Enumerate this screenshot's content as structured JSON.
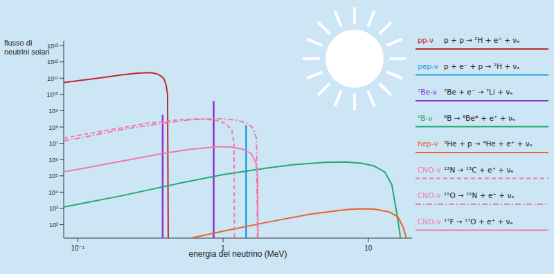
{
  "chart_data": {
    "type": "line",
    "xlabel": "energia del neutrino  (MeV)",
    "ylabel": [
      "flusso di",
      "neutrini solari"
    ],
    "log": true,
    "grid": false,
    "legend": "right",
    "xlim": [
      0.08,
      20
    ],
    "ylim": [
      15,
      20000000000000.0
    ],
    "xticks": [
      {
        "value": 0.1,
        "label": "10⁻¹"
      },
      1,
      10
    ],
    "yticks": [
      {
        "value": 100,
        "label": "10²"
      },
      {
        "value": 1000,
        "label": "10³"
      },
      {
        "value": 10000,
        "label": "10⁴"
      },
      {
        "value": 100000,
        "label": "10⁵"
      },
      {
        "value": 1000000,
        "label": "10⁶"
      },
      {
        "value": 10000000,
        "label": "10⁷"
      },
      {
        "value": 100000000,
        "label": "10⁸"
      },
      {
        "value": 1000000000,
        "label": "10⁹"
      },
      {
        "value": 10000000000,
        "label": "10¹⁰"
      },
      {
        "value": 100000000000,
        "label": "10¹¹"
      },
      {
        "value": 1000000000000,
        "label": "10¹²"
      },
      {
        "value": 10000000000000,
        "label": "10¹³"
      }
    ],
    "series": [
      {
        "name": "pp-ν",
        "reaction": "p + p → ²H + e⁺ + νₑ",
        "color": "#c1272d",
        "type": "line",
        "line_style": "solid",
        "x": [
          0.08,
          0.1,
          0.15,
          0.2,
          0.25,
          0.3,
          0.33,
          0.36,
          0.39,
          0.405,
          0.415,
          0.42
        ],
        "values": [
          55000000000,
          70000000000,
          110000000000,
          160000000000,
          200000000000,
          220000000000,
          210000000000,
          170000000000,
          100000000000,
          40000000000,
          10000000000,
          1
        ]
      },
      {
        "name": "pep-ν",
        "reaction": "p + e⁻ + p → ²H + νₑ",
        "color": "#1c9fdb",
        "type": "stem",
        "line_style": "solid",
        "x": [
          1.442
        ],
        "values": [
          130000000
        ]
      },
      {
        "name": "⁷Be-ν",
        "reaction": "⁷Be + e⁻ → ⁷Li + νₑ",
        "color": "#8b2fd6",
        "type": "stem",
        "line_style": "solid",
        "x": [
          0.384,
          0.862
        ],
        "values": [
          560000000,
          4000000000
        ]
      },
      {
        "name": "⁸B-ν",
        "reaction": "⁸B → ⁸Be* + e⁺ + νₑ",
        "color": "#1faa6e",
        "type": "line",
        "line_style": "solid",
        "x": [
          0.08,
          0.1,
          0.2,
          0.5,
          1,
          2,
          3,
          5,
          7,
          9,
          11,
          13,
          14.5,
          15.5,
          16.5,
          17
        ],
        "values": [
          1200,
          1800,
          6000,
          35000,
          120000,
          300000,
          480000,
          680000,
          700000,
          600000,
          400000,
          170000,
          30000,
          1000,
          30,
          1
        ]
      },
      {
        "name": "hep-ν",
        "reaction": "³He + p → ⁴He + e⁺ + νₑ",
        "color": "#e8622a",
        "type": "line",
        "line_style": "solid",
        "x": [
          0.6,
          1,
          2,
          4,
          7,
          9,
          11,
          14,
          16,
          17.5,
          18.5
        ],
        "values": [
          15,
          40,
          140,
          450,
          850,
          950,
          900,
          600,
          300,
          60,
          10
        ]
      },
      {
        "name": "CNO-ν",
        "reaction": "¹³N → ¹³C + e⁺ + νₑ",
        "color": "#f07aa3",
        "type": "line",
        "line_style": "dashed",
        "x": [
          0.08,
          0.1,
          0.2,
          0.3,
          0.5,
          0.7,
          0.9,
          1.05,
          1.15,
          1.19,
          1.2
        ],
        "values": [
          20000000,
          30000000,
          90000000,
          170000000,
          280000000,
          320000000,
          260000000,
          160000000,
          60000000,
          10000000,
          1
        ]
      },
      {
        "name": "CNO-ν",
        "reaction": "¹⁵O → ¹⁵N + e⁺ + νₑ",
        "color": "#f07aa3",
        "type": "line",
        "line_style": "dashdot",
        "x": [
          0.08,
          0.1,
          0.2,
          0.4,
          0.6,
          0.9,
          1.2,
          1.45,
          1.6,
          1.7,
          1.73
        ],
        "values": [
          14000000,
          20000000,
          70000000,
          180000000,
          280000000,
          330000000,
          280000000,
          180000000,
          90000000,
          20000000,
          1
        ]
      },
      {
        "name": "CNO-ν",
        "reaction": "¹⁷F → ¹⁷O + e⁺ + νₑ",
        "color": "#f07aa3",
        "type": "line",
        "line_style": "solid",
        "x": [
          0.08,
          0.1,
          0.2,
          0.4,
          0.6,
          0.9,
          1.1,
          1.35,
          1.55,
          1.68,
          1.73,
          1.74
        ],
        "values": [
          180000,
          250000,
          800000,
          2500000,
          4300000,
          6000000,
          6000000,
          4500000,
          2500000,
          700000,
          100000,
          1
        ]
      }
    ]
  }
}
